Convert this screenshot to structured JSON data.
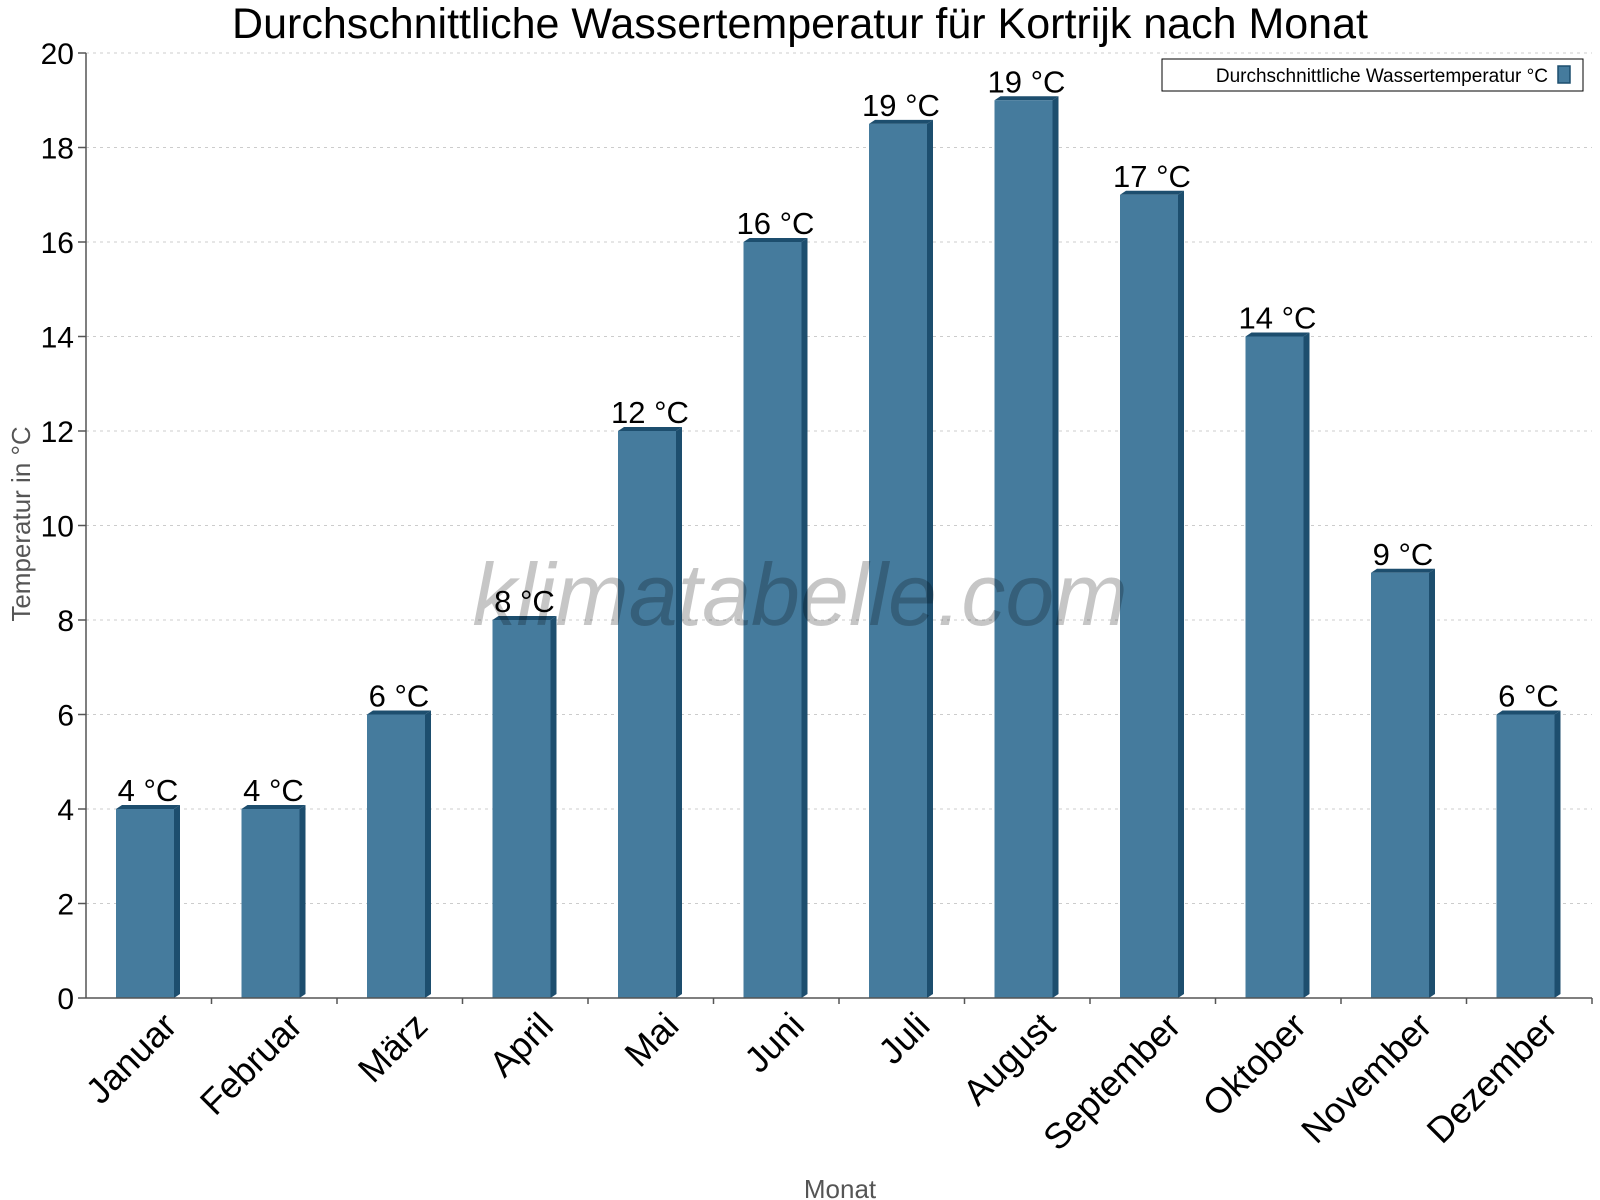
{
  "chart_data": {
    "type": "bar",
    "title": "Durchschnittliche Wassertemperatur für Kortrijk nach Monat",
    "xlabel": "Monat",
    "ylabel": "Temperatur in °C",
    "ylim": [
      0,
      20
    ],
    "yticks": [
      0,
      2,
      4,
      6,
      8,
      10,
      12,
      14,
      16,
      18,
      20
    ],
    "grid": true,
    "legend_position": "top-right",
    "categories": [
      "Januar",
      "Februar",
      "März",
      "April",
      "Mai",
      "Juni",
      "Juli",
      "August",
      "September",
      "Oktober",
      "November",
      "Dezember"
    ],
    "series": [
      {
        "name": "Durchschnittliche Wassertemperatur °C",
        "values": [
          4,
          4,
          6,
          8,
          12,
          16,
          18.5,
          19,
          17,
          14,
          9,
          6
        ],
        "labels": [
          "4 °C",
          "4 °C",
          "6 °C",
          "8 °C",
          "12 °C",
          "16 °C",
          "19 °C",
          "19 °C",
          "17 °C",
          "14 °C",
          "9 °C",
          "6 °C"
        ],
        "color": "#457b9d",
        "shadow_color": "#1d4e6e"
      }
    ],
    "watermark": "klimatabelle.com"
  }
}
